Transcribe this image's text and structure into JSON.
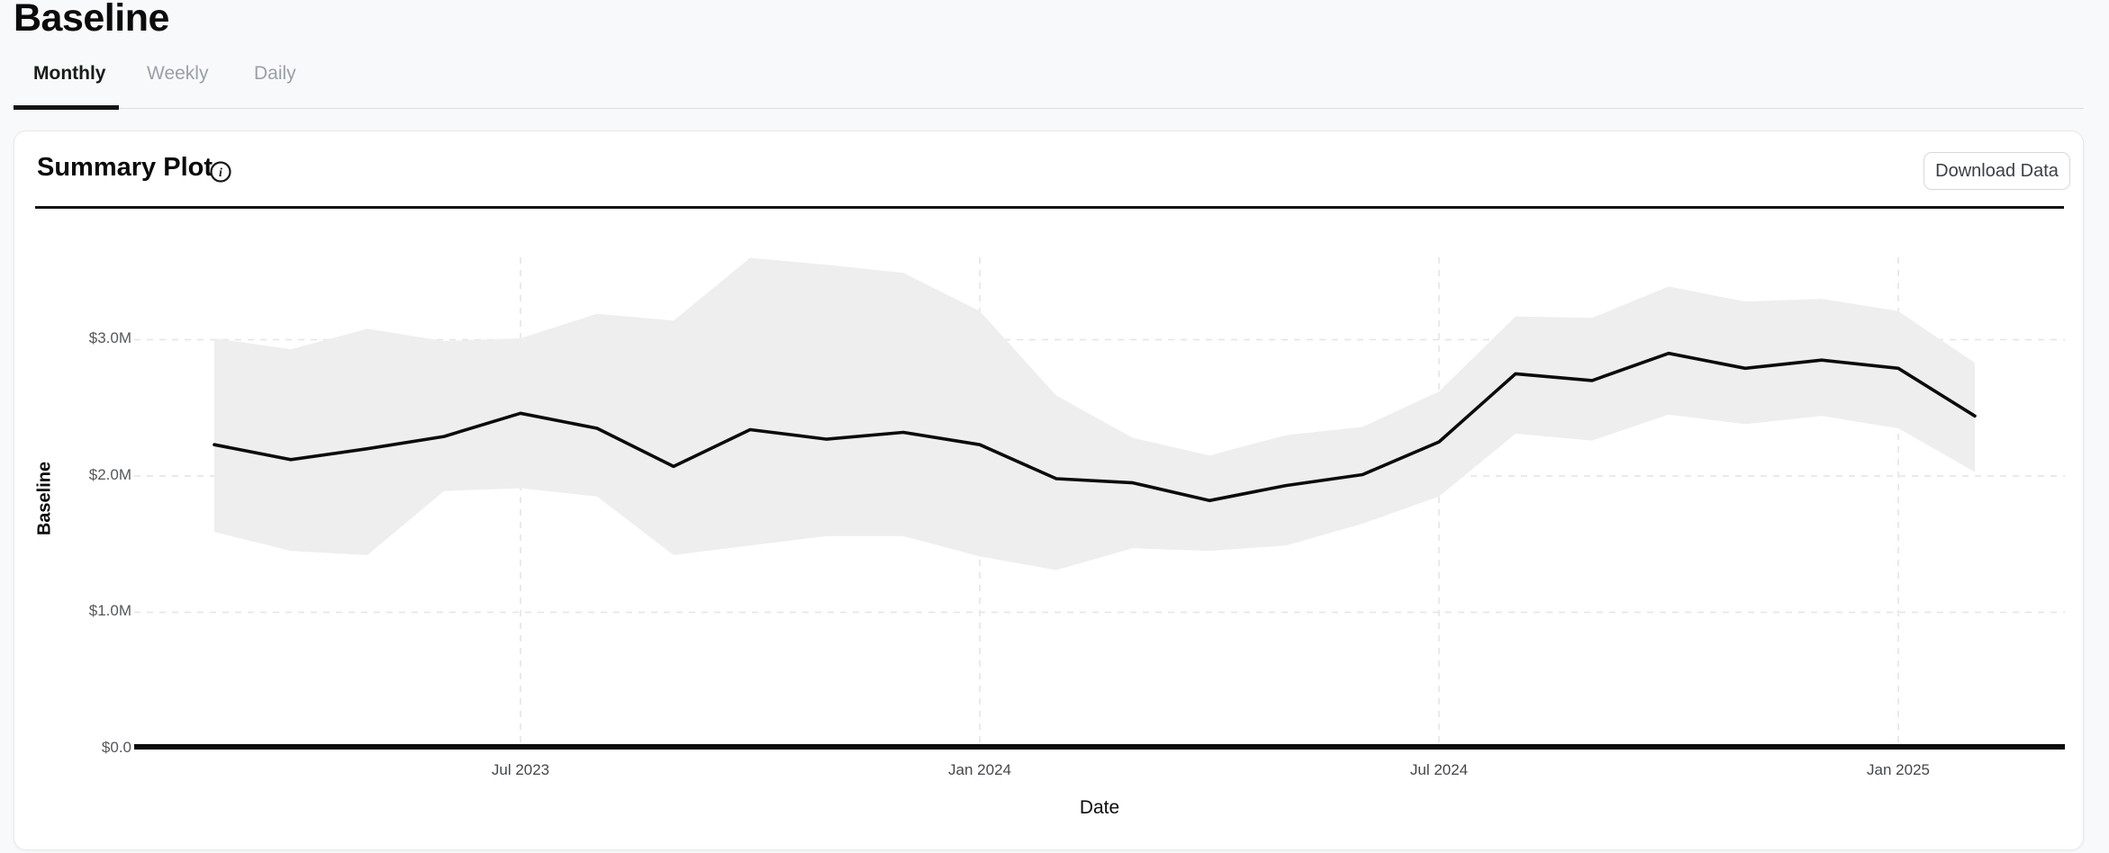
{
  "page": {
    "title": "Baseline"
  },
  "tabs": [
    {
      "label": "Monthly",
      "active": true
    },
    {
      "label": "Weekly",
      "active": false
    },
    {
      "label": "Daily",
      "active": false
    }
  ],
  "card": {
    "heading": "Summary Plot",
    "info_icon": "info-icon",
    "download_button_label": "Download Data"
  },
  "chart_data": {
    "type": "line",
    "title": "Summary Plot",
    "xlabel": "Date",
    "ylabel": "Baseline",
    "x": [
      "2023-03",
      "2023-04",
      "2023-05",
      "2023-06",
      "2023-07",
      "2023-08",
      "2023-09",
      "2023-10",
      "2023-11",
      "2023-12",
      "2024-01",
      "2024-02",
      "2024-03",
      "2024-04",
      "2024-05",
      "2024-06",
      "2024-07",
      "2024-08",
      "2024-09",
      "2024-10",
      "2024-11",
      "2024-12",
      "2025-01",
      "2025-02"
    ],
    "x_tick_labels": [
      "Jul 2023",
      "Jan 2024",
      "Jul 2024",
      "Jan 2025"
    ],
    "x_tick_indices": [
      4,
      10,
      16,
      22
    ],
    "y_tick_labels": [
      "$3.0M",
      "$2.0M",
      "$1.0M",
      "$0.0"
    ],
    "y_tick_values": [
      3.0,
      2.0,
      1.0,
      0.0
    ],
    "ylim": [
      0,
      3.7
    ],
    "grid": true,
    "legend": "none",
    "units": "USD millions",
    "series": [
      {
        "name": "baseline",
        "values": [
          2.23,
          2.12,
          2.2,
          2.29,
          2.46,
          2.35,
          2.07,
          2.34,
          2.27,
          2.32,
          2.23,
          1.98,
          1.95,
          1.82,
          1.93,
          2.01,
          2.25,
          2.75,
          2.7,
          2.9,
          2.79,
          2.85,
          2.79,
          2.44
        ]
      },
      {
        "name": "upper_bound",
        "values": [
          3.01,
          2.93,
          3.08,
          2.99,
          3.01,
          3.19,
          3.14,
          3.6,
          3.55,
          3.49,
          3.21,
          2.59,
          2.28,
          2.15,
          2.3,
          2.36,
          2.62,
          3.17,
          3.16,
          3.39,
          3.28,
          3.3,
          3.21,
          2.83
        ]
      },
      {
        "name": "lower_bound",
        "values": [
          1.59,
          1.45,
          1.42,
          1.89,
          1.91,
          1.85,
          1.42,
          1.49,
          1.56,
          1.56,
          1.41,
          1.31,
          1.47,
          1.45,
          1.49,
          1.65,
          1.85,
          2.31,
          2.26,
          2.45,
          2.38,
          2.44,
          2.35,
          2.03
        ]
      }
    ],
    "colors": {
      "line": "#0b0b0b",
      "band": "#eeeeee",
      "grid": "#e3e4e6",
      "axis": "#0b0b0b"
    }
  }
}
